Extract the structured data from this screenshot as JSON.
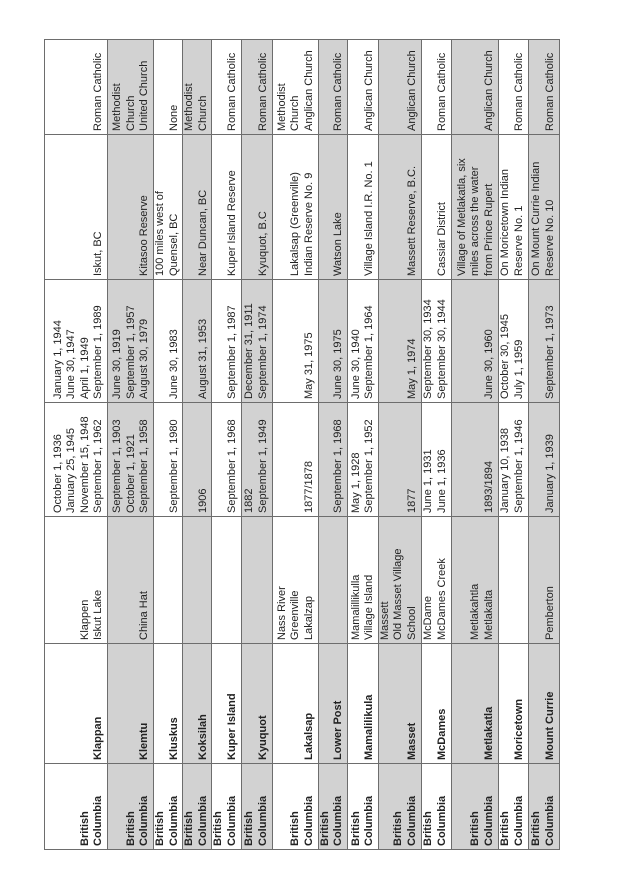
{
  "table": {
    "shade_color": "#d2d2d2",
    "rows": [
      {
        "province": "British\nColumbia",
        "school": "Klappan",
        "former_names": "Klappen\nIskut Lake",
        "opened": "October  1, 1936\nJanuary 25, 1945\nNovember 15, 1948\nSeptember 1, 1962",
        "closed": "January 1, 1944\nJune 30, 1947\nApril 1, 1949\nSeptember 1, 1989",
        "location": "Iskut, BC",
        "religion": "Roman Catholic",
        "shaded": false
      },
      {
        "province": "British\nColumbia",
        "school": "Klemtu",
        "former_names": "China Hat",
        "opened": "September 1, 1903\nOctober 1, 1921\nSeptember 1, 1958",
        "closed": "June 30, 1919\nSeptember 1, 1957\nAugust 30, 1979",
        "location": "Kitasoo Reserve",
        "religion": "Methodist\nChurch\nUnited Church",
        "shaded": true
      },
      {
        "province": "British\nColumbia",
        "school": "Kluskus",
        "former_names": "",
        "opened": "September 1, 1980",
        "closed": "June 30, 1983",
        "location": "100 miles west of\nQuensel, BC",
        "religion": "None",
        "shaded": false
      },
      {
        "province": "British\nColumbia",
        "school": "Koksilah",
        "former_names": "",
        "opened": "1906",
        "closed": "August 31, 1953",
        "location": "Near Duncan, BC",
        "religion": "Methodist\nChurch",
        "shaded": true
      },
      {
        "province": "British\nColumbia",
        "school": "Kuper Island",
        "former_names": "",
        "opened": "September 1, 1968",
        "closed": "September 1, 1987",
        "location": "Kuper Island Reserve",
        "religion": "Roman Catholic",
        "shaded": false
      },
      {
        "province": "British\nColumbia",
        "school": "Kyuquot",
        "former_names": "",
        "opened": "1882\nSeptember 1, 1949",
        "closed": "December 31, 1911\nSeptember 1, 1974",
        "location": "Kyuquot, B.C",
        "religion": "Roman Catholic",
        "shaded": true
      },
      {
        "province": "British\nColumbia",
        "school": "Lakalsap",
        "former_names": "Nass River\nGreenville\nLakalzap",
        "opened": "1877/1878",
        "closed": "May 31, 1975",
        "location": "Lakalsap (Greenville)\nIndian Reserve No. 9",
        "religion": "Methodist\nChurch\nAnglican Church",
        "shaded": false
      },
      {
        "province": "British\nColumbia",
        "school": "Lower Post",
        "former_names": "",
        "opened": "September 1, 1968",
        "closed": "June 30, 1975",
        "location": "Watson Lake",
        "religion": "Roman Catholic",
        "shaded": true
      },
      {
        "province": "British\nColumbia",
        "school": "Mamalilikula",
        "former_names": "Mamalillikulla\nVillage Island",
        "opened": "May 1, 1928\nSeptember 1, 1952",
        "closed": "June 30, 1940\nSeptember 1, 1964",
        "location": "Village Island I.R. No. 1",
        "religion": "Anglican Church",
        "shaded": false
      },
      {
        "province": "British\nColumbia",
        "school": "Masset",
        "former_names": "Massett\nOld Masset Village\nSchool",
        "opened": "1877",
        "closed": "May 1, 1974",
        "location": "Massett Reserve, B.C.",
        "religion": "Anglican Church",
        "shaded": true
      },
      {
        "province": "British\nColumbia",
        "school": "McDames",
        "former_names": "McDame\nMcDames Creek",
        "opened": "June 1, 1931\nJune 1, 1936",
        "closed": "September 30, 1934\nSeptember 30, 1944",
        "location": "Cassiar District",
        "religion": "Roman Catholic",
        "shaded": false
      },
      {
        "province": "British\nColumbia",
        "school": "Metlakatla",
        "former_names": "Metlakahtla\nMetlakalta",
        "opened": "1893/1894",
        "closed": "June 30, 1960",
        "location": "Village of Metlakatla, six\nmiles across the water\nfrom Prince Rupert",
        "religion": "Anglican Church",
        "shaded": true
      },
      {
        "province": "British\nColumbia",
        "school": "Moricetown",
        "former_names": "",
        "opened": "January 10, 1938\nSeptember 1, 1946",
        "closed": "October 30, 1945\nJuly 1, 1959",
        "location": "On Moricetown Indian\nReserve No. 1",
        "religion": "Roman Catholic",
        "shaded": false
      },
      {
        "province": "British\nColumbia",
        "school": "Mount Currie",
        "former_names": "Pemberton",
        "opened": "January 1, 1939",
        "closed": "September 1, 1973",
        "location": "On Mount Currie Indian\nReserve No. 10",
        "religion": "Roman Catholic",
        "shaded": true
      }
    ]
  }
}
